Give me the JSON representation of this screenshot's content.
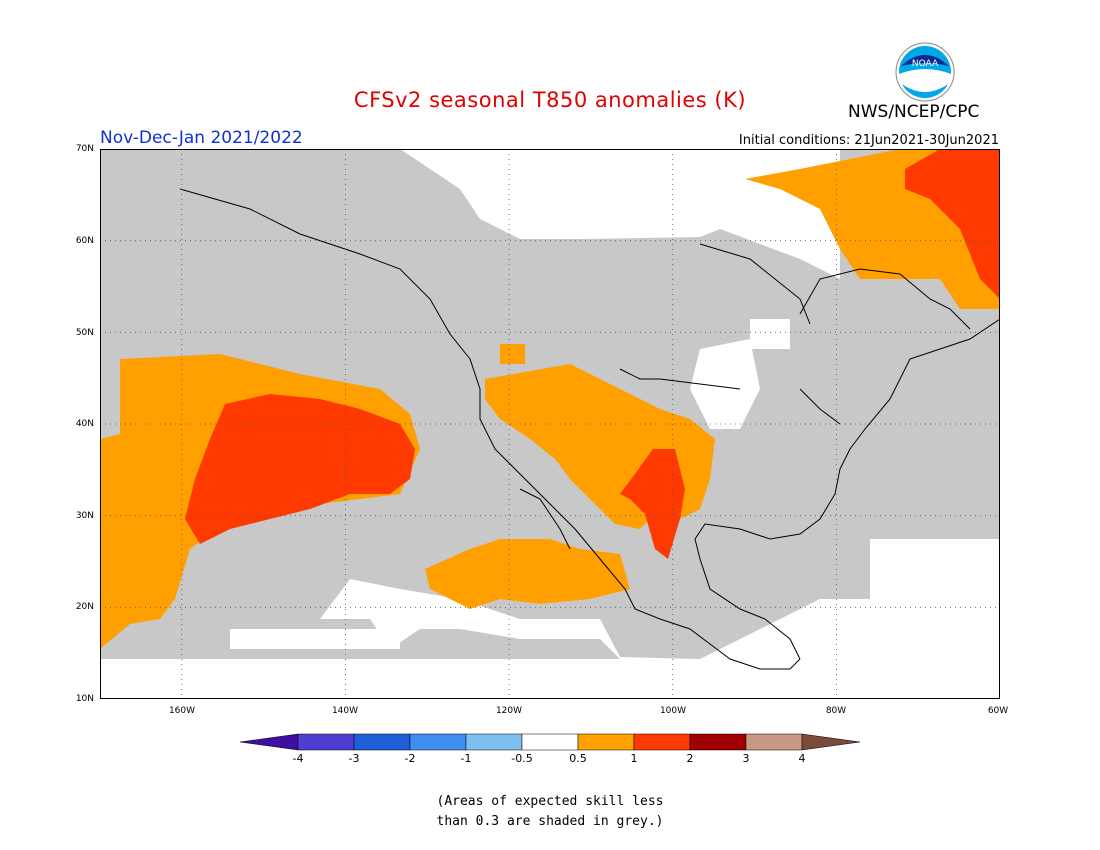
{
  "title": "CFSv2 seasonal T850 anomalies (K)",
  "period": "Nov-Dec-Jan 2021/2022",
  "initial_conditions": "Initial conditions: 21Jun2021-30Jun2021",
  "org": "NWS/NCEP/CPC",
  "logo_text": "NOAA",
  "lat_labels": [
    "70N",
    "60N",
    "50N",
    "40N",
    "30N",
    "20N",
    "10N"
  ],
  "lon_labels": [
    "160W",
    "140W",
    "120W",
    "100W",
    "80W",
    "60W"
  ],
  "colorbar": {
    "labels": [
      "-4",
      "-3",
      "-2",
      "-1",
      "-0.5",
      "0.5",
      "1",
      "2",
      "3",
      "4"
    ],
    "colors": [
      "#3f0f9f",
      "#4f3fd0",
      "#1f5fd8",
      "#3f8ff0",
      "#7fbff0",
      "#ffffff",
      "#ffa000",
      "#ff3a00",
      "#a00000",
      "#c89a86",
      "#7a4a3a"
    ]
  },
  "legend_colors": {
    "grey": "#c8c8c8",
    "orange": "#ffa000",
    "red": "#ff3a00"
  },
  "note_line1": "(Areas of expected skill less",
  "note_line2": "than 0.3 are shaded in grey.)"
}
